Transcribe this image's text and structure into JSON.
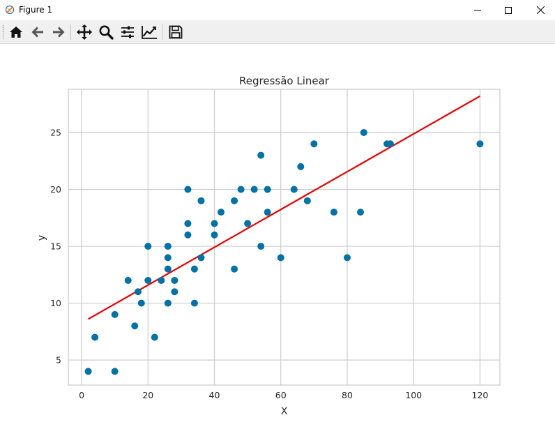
{
  "window": {
    "title": "Figure 1",
    "controls": {
      "minimize": "minimize",
      "maximize": "maximize",
      "close": "close"
    }
  },
  "toolbar": {
    "icons": [
      "home-icon",
      "back-arrow-icon",
      "forward-arrow-icon",
      "pan-icon",
      "zoom-icon",
      "configure-subplots-icon",
      "edit-axis-icon",
      "save-icon"
    ]
  },
  "colors": {
    "scatter": "#0072a8",
    "line": "#ee0000",
    "grid": "#cccccc",
    "axes_edge": "#cccccc",
    "text": "#262626"
  },
  "chart_data": {
    "type": "scatter",
    "title": "Regressão Linear",
    "xlabel": "X",
    "ylabel": "y",
    "xlim": [
      -4,
      126
    ],
    "ylim": [
      2.8,
      28.8
    ],
    "xticks": [
      0,
      20,
      40,
      60,
      80,
      100,
      120
    ],
    "yticks": [
      5,
      10,
      15,
      20,
      25
    ],
    "grid": true,
    "series": [
      {
        "type": "scatter",
        "points": [
          [
            2,
            4
          ],
          [
            4,
            7
          ],
          [
            10,
            4
          ],
          [
            10,
            9
          ],
          [
            14,
            12
          ],
          [
            16,
            8
          ],
          [
            17,
            11
          ],
          [
            18,
            10
          ],
          [
            20,
            12
          ],
          [
            20,
            15
          ],
          [
            22,
            7
          ],
          [
            24,
            12
          ],
          [
            26,
            10
          ],
          [
            26,
            13
          ],
          [
            26,
            14
          ],
          [
            26,
            15
          ],
          [
            28,
            11
          ],
          [
            28,
            12
          ],
          [
            32,
            16
          ],
          [
            32,
            17
          ],
          [
            32,
            20
          ],
          [
            34,
            10
          ],
          [
            34,
            13
          ],
          [
            36,
            14
          ],
          [
            36,
            19
          ],
          [
            40,
            16
          ],
          [
            40,
            17
          ],
          [
            42,
            18
          ],
          [
            46,
            13
          ],
          [
            46,
            19
          ],
          [
            48,
            20
          ],
          [
            50,
            17
          ],
          [
            52,
            20
          ],
          [
            54,
            15
          ],
          [
            54,
            23
          ],
          [
            56,
            18
          ],
          [
            56,
            20
          ],
          [
            60,
            14
          ],
          [
            64,
            20
          ],
          [
            66,
            22
          ],
          [
            68,
            19
          ],
          [
            70,
            24
          ],
          [
            76,
            18
          ],
          [
            80,
            14
          ],
          [
            84,
            18
          ],
          [
            85,
            25
          ],
          [
            92,
            24
          ],
          [
            93,
            24
          ],
          [
            120,
            24
          ]
        ]
      },
      {
        "type": "line",
        "points": [
          [
            2,
            8.6
          ],
          [
            120,
            28.2
          ]
        ]
      }
    ]
  }
}
